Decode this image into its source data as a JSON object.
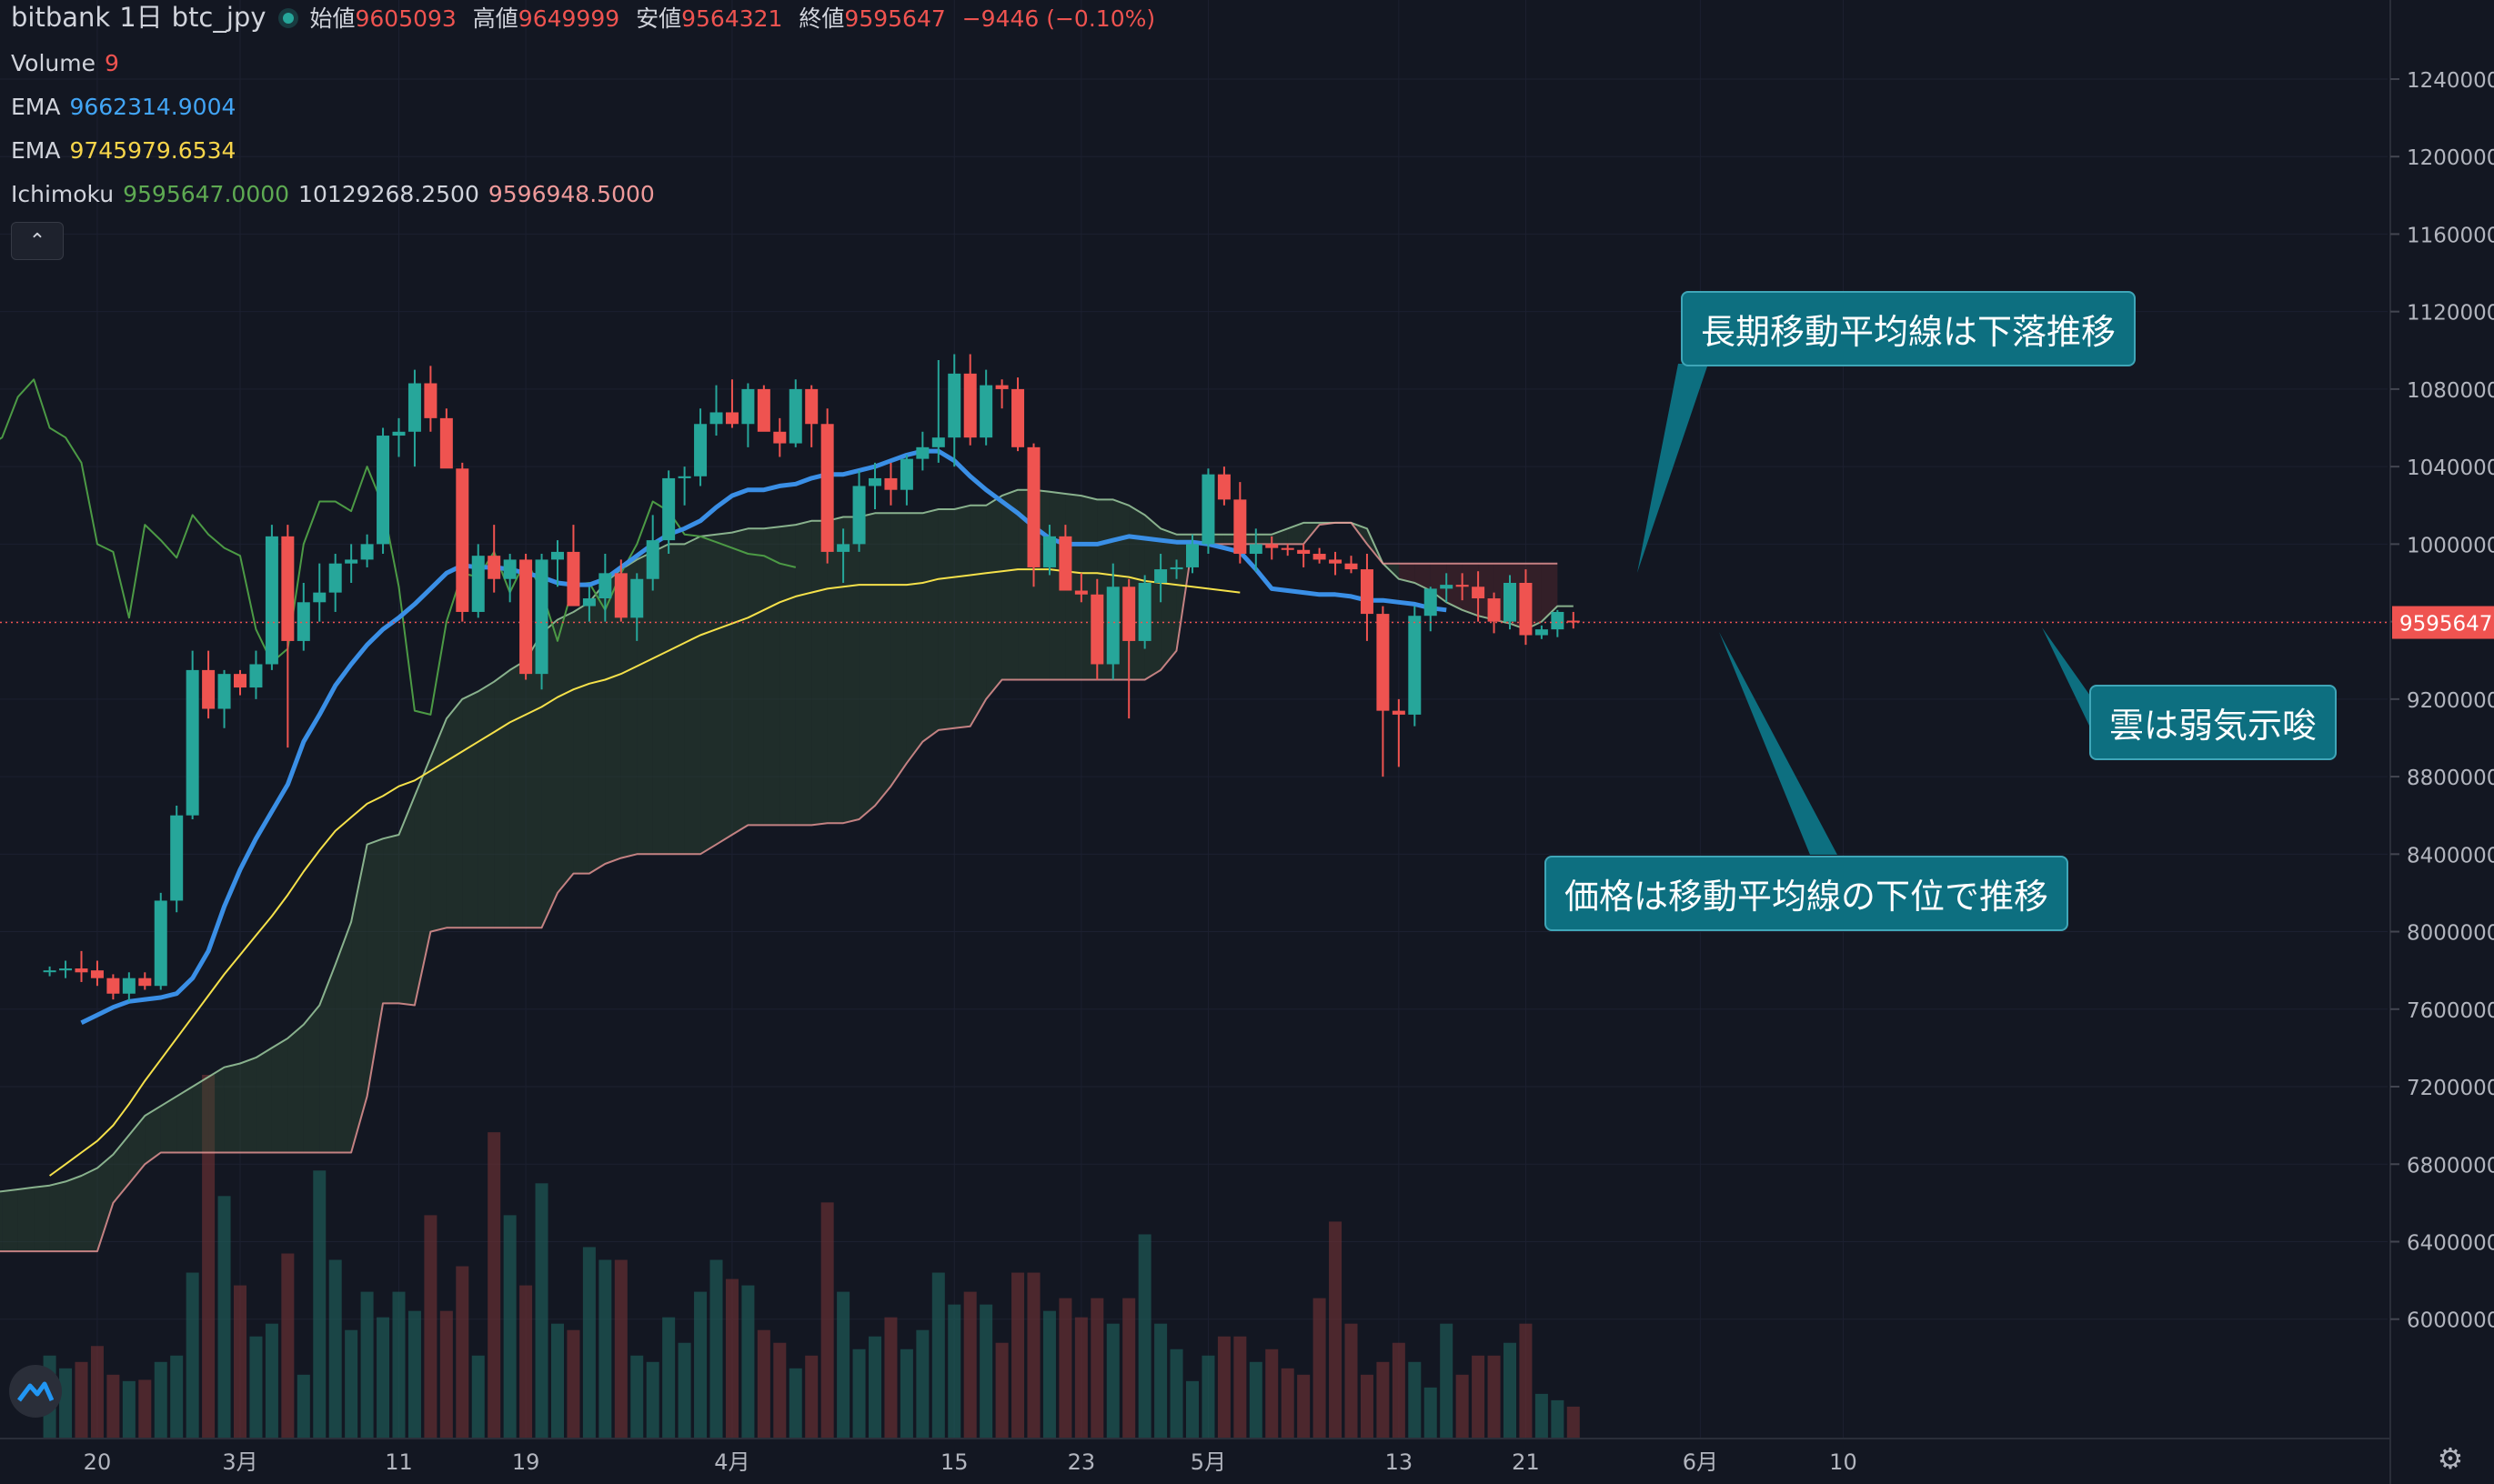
{
  "header": {
    "symbol_exchange": "bitbank",
    "interval": "1日",
    "pair": "btc_jpy",
    "ohlc": [
      {
        "label": "始値",
        "value": "9605093"
      },
      {
        "label": "高値",
        "value": "9649999"
      },
      {
        "label": "安値",
        "value": "9564321"
      },
      {
        "label": "終値",
        "value": "9595647"
      }
    ],
    "change": "−9446 (−0.10%)"
  },
  "indicators": {
    "volume": {
      "label": "Volume",
      "value": "9"
    },
    "ema1": {
      "label": "EMA",
      "value": "9662314.9004"
    },
    "ema2": {
      "label": "EMA",
      "value": "9745979.6534"
    },
    "ichimoku": {
      "label": "Ichimoku",
      "v1": "9595647.0000",
      "v2": "10129268.2500",
      "v3": "9596948.5000"
    }
  },
  "annotations": {
    "a1": "長期移動平均線は下落推移",
    "a2": "雲は弱気示唆",
    "a3": "価格は移動平均線の下位で推移"
  },
  "colors": {
    "background": "#131722",
    "up": "#26a69a",
    "down": "#ef5350",
    "ema_short": "#3a8fe6",
    "ema_long": "#f5e14a",
    "callout": "#0d6f80"
  },
  "icons": [
    "chevron-up-icon",
    "tradingview-logo-icon",
    "gear-icon"
  ],
  "chart_data": {
    "type": "candlestick",
    "y_axis_ticks": [
      "12400000",
      "12000000",
      "11600000",
      "11200000",
      "10800000",
      "10400000",
      "10000000",
      "9600000",
      "9200000",
      "8800000",
      "8400000",
      "8000000",
      "7600000",
      "7200000",
      "6800000",
      "6400000",
      "6000000"
    ],
    "ylim": [
      5750000,
      12550000
    ],
    "last_price_label": "9595647",
    "last_price": 9595647,
    "x_axis_ticks": [
      "20",
      "3月",
      "11",
      "19",
      "4月",
      "15",
      "23",
      "5月",
      "13",
      "21",
      "6月",
      "10"
    ],
    "x_tick_days": [
      -9,
      0,
      10,
      18,
      31,
      45,
      53,
      61,
      73,
      81,
      92,
      101
    ],
    "candles_from_day": -12,
    "candles": [
      [
        7800000,
        7820000,
        7770000,
        7800000
      ],
      [
        7800000,
        7850000,
        7760000,
        7810000
      ],
      [
        7810000,
        7900000,
        7740000,
        7790000
      ],
      [
        7800000,
        7850000,
        7720000,
        7760000
      ],
      [
        7760000,
        7780000,
        7650000,
        7680000
      ],
      [
        7680000,
        7790000,
        7640000,
        7760000
      ],
      [
        7760000,
        7790000,
        7700000,
        7720000
      ],
      [
        7720000,
        8200000,
        7700000,
        8160000
      ],
      [
        8160000,
        8650000,
        8100000,
        8600000
      ],
      [
        8600000,
        9450000,
        8580000,
        9350000
      ],
      [
        9350000,
        9450000,
        9100000,
        9150000
      ],
      [
        9150000,
        9350000,
        9050000,
        9330000
      ],
      [
        9330000,
        9350000,
        9220000,
        9260000
      ],
      [
        9260000,
        9450000,
        9200000,
        9380000
      ],
      [
        9380000,
        10100000,
        9350000,
        10040000
      ],
      [
        10040000,
        10100000,
        8950000,
        9500000
      ],
      [
        9500000,
        9800000,
        9450000,
        9700000
      ],
      [
        9700000,
        9900000,
        9600000,
        9750000
      ],
      [
        9750000,
        9950000,
        9650000,
        9900000
      ],
      [
        9900000,
        10000000,
        9800000,
        9920000
      ],
      [
        9920000,
        10050000,
        9880000,
        10000000
      ],
      [
        10000000,
        10600000,
        9950000,
        10560000
      ],
      [
        10560000,
        10650000,
        10450000,
        10580000
      ],
      [
        10580000,
        10900000,
        10400000,
        10830000
      ],
      [
        10830000,
        10920000,
        10580000,
        10650000
      ],
      [
        10650000,
        10700000,
        10400000,
        10390000
      ],
      [
        10390000,
        10420000,
        9600000,
        9650000
      ],
      [
        9650000,
        10000000,
        9620000,
        9940000
      ],
      [
        9940000,
        10100000,
        9750000,
        9820000
      ],
      [
        9820000,
        9950000,
        9700000,
        9920000
      ],
      [
        9920000,
        9950000,
        9300000,
        9330000
      ],
      [
        9330000,
        9950000,
        9250000,
        9920000
      ],
      [
        9920000,
        10020000,
        9780000,
        9960000
      ],
      [
        9960000,
        10100000,
        9700000,
        9680000
      ],
      [
        9680000,
        9780000,
        9600000,
        9720000
      ],
      [
        9720000,
        9950000,
        9600000,
        9850000
      ],
      [
        9850000,
        9920000,
        9600000,
        9620000
      ],
      [
        9620000,
        9850000,
        9500000,
        9820000
      ],
      [
        9820000,
        10150000,
        9760000,
        10020000
      ],
      [
        10020000,
        10380000,
        9950000,
        10340000
      ],
      [
        10340000,
        10400000,
        10200000,
        10350000
      ],
      [
        10350000,
        10700000,
        10300000,
        10620000
      ],
      [
        10620000,
        10820000,
        10560000,
        10680000
      ],
      [
        10680000,
        10850000,
        10600000,
        10620000
      ],
      [
        10620000,
        10830000,
        10500000,
        10800000
      ],
      [
        10800000,
        10820000,
        10620000,
        10580000
      ],
      [
        10580000,
        10650000,
        10450000,
        10520000
      ],
      [
        10520000,
        10850000,
        10500000,
        10800000
      ],
      [
        10800000,
        10820000,
        10500000,
        10620000
      ],
      [
        10620000,
        10700000,
        9900000,
        9960000
      ],
      [
        9960000,
        10080000,
        9800000,
        10000000
      ],
      [
        10000000,
        10380000,
        9960000,
        10300000
      ],
      [
        10300000,
        10420000,
        10180000,
        10340000
      ],
      [
        10340000,
        10420000,
        10200000,
        10280000
      ],
      [
        10280000,
        10460000,
        10200000,
        10440000
      ],
      [
        10440000,
        10580000,
        10380000,
        10500000
      ],
      [
        10500000,
        10950000,
        10420000,
        10550000
      ],
      [
        10550000,
        10980000,
        10400000,
        10880000
      ],
      [
        10880000,
        10980000,
        10510000,
        10550000
      ],
      [
        10550000,
        10900000,
        10510000,
        10820000
      ],
      [
        10820000,
        10850000,
        10700000,
        10800000
      ],
      [
        10800000,
        10860000,
        10480000,
        10500000
      ],
      [
        10500000,
        10520000,
        9780000,
        9880000
      ],
      [
        9880000,
        10100000,
        9840000,
        10040000
      ],
      [
        10040000,
        10100000,
        9780000,
        9760000
      ],
      [
        9760000,
        9850000,
        9700000,
        9740000
      ],
      [
        9740000,
        9820000,
        9300000,
        9380000
      ],
      [
        9380000,
        9900000,
        9300000,
        9780000
      ],
      [
        9780000,
        9820000,
        9100000,
        9500000
      ],
      [
        9500000,
        9840000,
        9460000,
        9800000
      ],
      [
        9800000,
        9950000,
        9700000,
        9870000
      ],
      [
        9870000,
        9920000,
        9820000,
        9880000
      ],
      [
        9880000,
        10050000,
        9850000,
        10000000
      ],
      [
        10000000,
        10390000,
        9950000,
        10360000
      ],
      [
        10360000,
        10400000,
        10200000,
        10230000
      ],
      [
        10230000,
        10320000,
        9900000,
        9950000
      ],
      [
        9950000,
        10080000,
        9860000,
        10000000
      ],
      [
        10000000,
        10040000,
        9920000,
        9980000
      ],
      [
        9980000,
        10000000,
        9940000,
        9970000
      ],
      [
        9970000,
        10000000,
        9880000,
        9950000
      ],
      [
        9950000,
        9980000,
        9900000,
        9920000
      ],
      [
        9920000,
        9960000,
        9840000,
        9900000
      ],
      [
        9900000,
        9940000,
        9850000,
        9870000
      ],
      [
        9870000,
        9950000,
        9500000,
        9640000
      ],
      [
        9640000,
        9680000,
        8800000,
        9140000
      ],
      [
        9140000,
        9200000,
        8850000,
        9120000
      ],
      [
        9120000,
        9680000,
        9060000,
        9630000
      ],
      [
        9630000,
        9780000,
        9550000,
        9770000
      ],
      [
        9770000,
        9850000,
        9700000,
        9790000
      ],
      [
        9790000,
        9850000,
        9710000,
        9780000
      ],
      [
        9780000,
        9860000,
        9600000,
        9720000
      ],
      [
        9720000,
        9750000,
        9540000,
        9600000
      ],
      [
        9600000,
        9840000,
        9560000,
        9800000
      ],
      [
        9800000,
        9870000,
        9480000,
        9530000
      ],
      [
        9530000,
        9580000,
        9510000,
        9560000
      ],
      [
        9560000,
        9660000,
        9520000,
        9650000
      ],
      [
        9605093,
        9649999,
        9564321,
        9595647
      ]
    ],
    "ema_short": [
      7530000,
      7570000,
      7610000,
      7640000,
      7650000,
      7660000,
      7680000,
      7760000,
      7900000,
      8130000,
      8320000,
      8480000,
      8620000,
      8760000,
      8980000,
      9120000,
      9270000,
      9380000,
      9480000,
      9560000,
      9620000,
      9690000,
      9770000,
      9850000,
      9890000,
      9880000,
      9880000,
      9870000,
      9850000,
      9830000,
      9800000,
      9790000,
      9790000,
      9820000,
      9880000,
      9940000,
      10000000,
      10050000,
      10080000,
      10120000,
      10190000,
      10250000,
      10280000,
      10280000,
      10300000,
      10310000,
      10340000,
      10360000,
      10360000,
      10380000,
      10400000,
      10430000,
      10460000,
      10480000,
      10480000,
      10430000,
      10350000,
      10280000,
      10220000,
      10160000,
      10090000,
      10030000,
      10000000,
      10000000,
      10000000,
      10020000,
      10040000,
      10030000,
      10020000,
      10010000,
      10010000,
      10000000,
      9980000,
      9960000,
      9870000,
      9770000,
      9760000,
      9750000,
      9740000,
      9740000,
      9730000,
      9710000,
      9710000,
      9700000,
      9690000,
      9670000,
      9660000
    ],
    "ema_short_from_day": -10,
    "ema_long": [
      6740000,
      6800000,
      6860000,
      6920000,
      7000000,
      7110000,
      7230000,
      7340000,
      7450000,
      7560000,
      7670000,
      7780000,
      7880000,
      7980000,
      8080000,
      8190000,
      8310000,
      8420000,
      8520000,
      8590000,
      8660000,
      8700000,
      8750000,
      8780000,
      8830000,
      8880000,
      8930000,
      8980000,
      9030000,
      9080000,
      9120000,
      9160000,
      9210000,
      9250000,
      9280000,
      9300000,
      9330000,
      9370000,
      9410000,
      9450000,
      9490000,
      9530000,
      9560000,
      9590000,
      9620000,
      9660000,
      9700000,
      9730000,
      9750000,
      9770000,
      9780000,
      9790000,
      9790000,
      9790000,
      9790000,
      9800000,
      9820000,
      9830000,
      9840000,
      9850000,
      9860000,
      9870000,
      9870000,
      9870000,
      9860000,
      9850000,
      9850000,
      9840000,
      9830000,
      9810000,
      9800000,
      9790000,
      9780000,
      9770000,
      9760000,
      9750000
    ],
    "ema_long_from_day": -12,
    "ichimoku_senkou_a": [
      6600000,
      6610000,
      6620000,
      6630000,
      6640000,
      6650000,
      6660000,
      6670000,
      6680000,
      6690000,
      6710000,
      6740000,
      6780000,
      6850000,
      6950000,
      7050000,
      7100000,
      7150000,
      7200000,
      7250000,
      7300000,
      7320000,
      7350000,
      7400000,
      7450000,
      7520000,
      7620000,
      7830000,
      8050000,
      8450000,
      8480000,
      8500000,
      8700000,
      8900000,
      9100000,
      9200000,
      9240000,
      9290000,
      9350000,
      9400000,
      9540000,
      9610000,
      9650000,
      9700000,
      9800000,
      9870000,
      9920000,
      9960000,
      10000000,
      10000000,
      10040000,
      10050000,
      10060000,
      10080000,
      10080000,
      10090000,
      10100000,
      10120000,
      10120000,
      10140000,
      10140000,
      10160000,
      10160000,
      10160000,
      10160000,
      10180000,
      10180000,
      10200000,
      10200000,
      10250000,
      10280000,
      10280000,
      10270000,
      10260000,
      10250000,
      10230000,
      10230000,
      10200000,
      10150000,
      10080000,
      10050000,
      10050000,
      10050000,
      10050000,
      10050000,
      10050000,
      10050000,
      10080000,
      10110000,
      10110000,
      10110000,
      10110000,
      10080000,
      9900000,
      9820000,
      9800000,
      9760000,
      9700000,
      9660000,
      9630000,
      9610000,
      9590000,
      9560000,
      9600000,
      9680000,
      9680000
    ],
    "ichimoku_senkou_b": [
      6350000,
      6350000,
      6350000,
      6350000,
      6350000,
      6350000,
      6350000,
      6350000,
      6350000,
      6350000,
      6350000,
      6350000,
      6350000,
      6600000,
      6700000,
      6800000,
      6860000,
      6860000,
      6860000,
      6860000,
      6860000,
      6860000,
      6860000,
      6860000,
      6860000,
      6860000,
      6860000,
      6860000,
      6860000,
      7150000,
      7630000,
      7630000,
      7620000,
      8000000,
      8020000,
      8020000,
      8020000,
      8020000,
      8020000,
      8020000,
      8020000,
      8200000,
      8300000,
      8300000,
      8350000,
      8380000,
      8400000,
      8400000,
      8400000,
      8400000,
      8400000,
      8450000,
      8500000,
      8550000,
      8550000,
      8550000,
      8550000,
      8550000,
      8560000,
      8560000,
      8580000,
      8650000,
      8750000,
      8870000,
      8980000,
      9040000,
      9050000,
      9060000,
      9200000,
      9300000,
      9300000,
      9300000,
      9300000,
      9300000,
      9300000,
      9300000,
      9300000,
      9300000,
      9300000,
      9350000,
      9450000,
      10000000,
      10000000,
      10000000,
      10000000,
      10000000,
      10000000,
      10000000,
      10000000,
      10100000,
      10110000,
      10110000,
      10000000,
      9900000,
      9900000,
      9900000,
      9900000,
      9900000,
      9900000,
      9900000,
      9900000,
      9900000,
      9900000,
      9900000,
      9900000
    ],
    "ichimoku_from_day": -21,
    "chikou": [
      10460000,
      10200000,
      9880000,
      9700000,
      9480000,
      10000000,
      9500000,
      9450000,
      10000000,
      10000000,
      9850000,
      9780000,
      9820000,
      10000000,
      10220000,
      10060000,
      10600000,
      10680000,
      10650000,
      10400000,
      10500000,
      10850000,
      10500000,
      10550000,
      10760000,
      10850000,
      10600000,
      10550000,
      10420000,
      10000000,
      9960000,
      9620000,
      10100000,
      10020000,
      9930000,
      10150000,
      10050000,
      9980000,
      9940000,
      9560000,
      9390000,
      9460000,
      10000000,
      10220000,
      10220000,
      10170000,
      10400000,
      10200000,
      9780000,
      9140000,
      9120000,
      9600000,
      9850000,
      9830000,
      9960000,
      9750000,
      9920000,
      9760000,
      9500000,
      9790000,
      9800000,
      9660000,
      9850000,
      10000000,
      10220000,
      10170000,
      10050000,
      10040000,
      10010000,
      9980000,
      9950000,
      9940000,
      9900000,
      9880000
    ],
    "chikou_from_day": -38,
    "volume": [
      1300,
      1100,
      1200,
      1450,
      1000,
      900,
      920,
      1200,
      1300,
      2600,
      5700,
      3800,
      2400,
      1600,
      1800,
      2900,
      1000,
      4200,
      2800,
      1700,
      2300,
      1900,
      2300,
      2000,
      3500,
      2000,
      2700,
      1300,
      4800,
      3500,
      2400,
      4000,
      1800,
      1700,
      3000,
      2800,
      2800,
      1300,
      1200,
      1900,
      1500,
      2300,
      2800,
      2500,
      2400,
      1700,
      1500,
      1100,
      1300,
      3700,
      2300,
      1400,
      1600,
      1900,
      1400,
      1700,
      2600,
      2100,
      2300,
      2100,
      1500,
      2600,
      2600,
      2000,
      2200,
      1900,
      2200,
      1800,
      2200,
      3200,
      1800,
      1400,
      900,
      1300,
      1600,
      1600,
      1200,
      1400,
      1100,
      1000,
      2200,
      3400,
      1800,
      1000,
      1200,
      1500,
      1200,
      800,
      1800,
      1000,
      1300,
      1300,
      1500,
      1800,
      700,
      600,
      500
    ]
  }
}
